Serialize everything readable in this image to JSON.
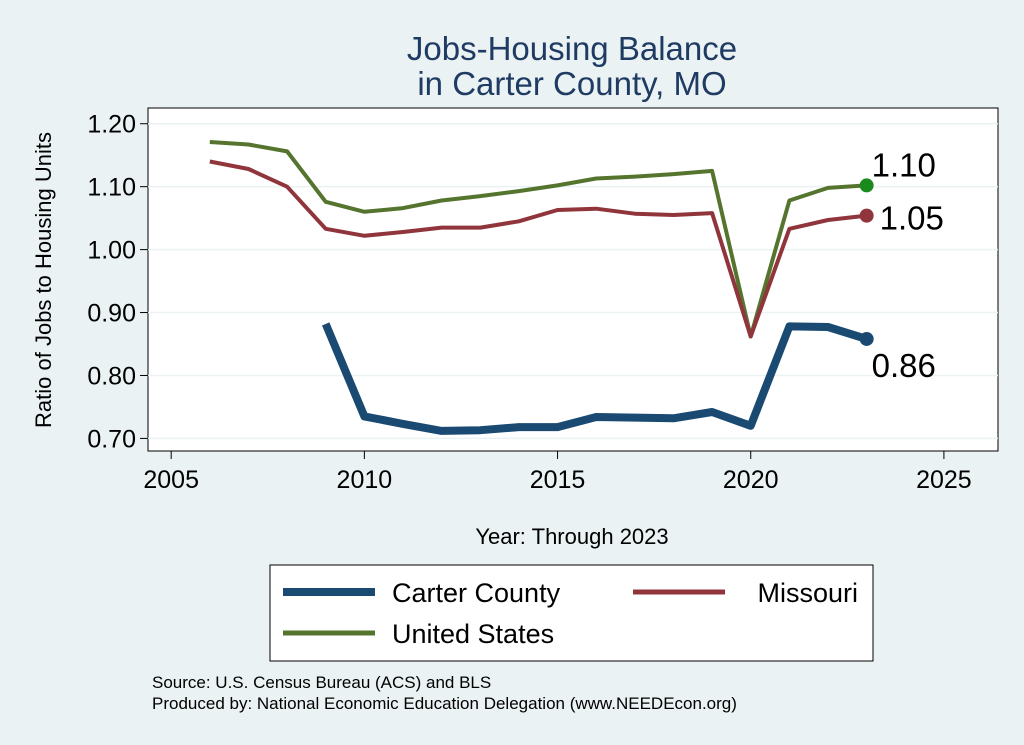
{
  "chart_data": {
    "type": "line",
    "title": [
      "Jobs-Housing Balance",
      "in Carter County, MO"
    ],
    "xlabel": "Year: Through 2023",
    "ylabel": "Ratio of Jobs to Housing Units",
    "xlim": [
      2004.4,
      2026.4
    ],
    "ylim": [
      0.68,
      1.225
    ],
    "xticks": [
      2005,
      2010,
      2015,
      2020,
      2025
    ],
    "yticks": [
      1.2,
      1.1,
      1.0,
      0.9,
      0.8,
      0.7
    ],
    "ytick_labels": [
      "1.20",
      "1.10",
      "1.00",
      "0.90",
      "0.80",
      "0.70"
    ],
    "grid": true,
    "legend_position": "bottom",
    "series": [
      {
        "name": "Carter County",
        "color": "#1a4a72",
        "width": 8,
        "x": [
          2009,
          2010,
          2011,
          2012,
          2013,
          2014,
          2015,
          2016,
          2017,
          2018,
          2019,
          2020,
          2021,
          2022,
          2023
        ],
        "y": [
          0.882,
          0.735,
          0.723,
          0.712,
          0.713,
          0.718,
          0.718,
          0.734,
          0.733,
          0.732,
          0.742,
          0.72,
          0.878,
          0.877,
          0.858
        ],
        "end_label": "0.86",
        "marker_color": "#1a4a72"
      },
      {
        "name": "Missouri",
        "color": "#90353b",
        "width": 4,
        "x": [
          2006,
          2007,
          2008,
          2009,
          2010,
          2011,
          2012,
          2013,
          2014,
          2015,
          2016,
          2017,
          2018,
          2019,
          2020,
          2021,
          2022,
          2023
        ],
        "y": [
          1.14,
          1.128,
          1.1,
          1.033,
          1.022,
          1.028,
          1.035,
          1.035,
          1.045,
          1.063,
          1.065,
          1.057,
          1.055,
          1.058,
          0.862,
          1.033,
          1.047,
          1.054
        ],
        "end_label": "1.05",
        "marker_color": "#90353b"
      },
      {
        "name": "United States",
        "color": "#55752f",
        "width": 4,
        "x": [
          2006,
          2007,
          2008,
          2009,
          2010,
          2011,
          2012,
          2013,
          2014,
          2015,
          2016,
          2017,
          2018,
          2019,
          2020,
          2021,
          2022,
          2023
        ],
        "y": [
          1.171,
          1.167,
          1.156,
          1.076,
          1.06,
          1.066,
          1.078,
          1.085,
          1.093,
          1.102,
          1.113,
          1.116,
          1.12,
          1.125,
          0.862,
          1.078,
          1.098,
          1.102
        ],
        "end_label": "1.10",
        "marker_color": "#1b8a1e"
      }
    ],
    "source": [
      "Source: U.S. Census Bureau (ACS) and BLS",
      "Produced by: National Economic Education Delegation (www.NEEDEcon.org)"
    ]
  }
}
